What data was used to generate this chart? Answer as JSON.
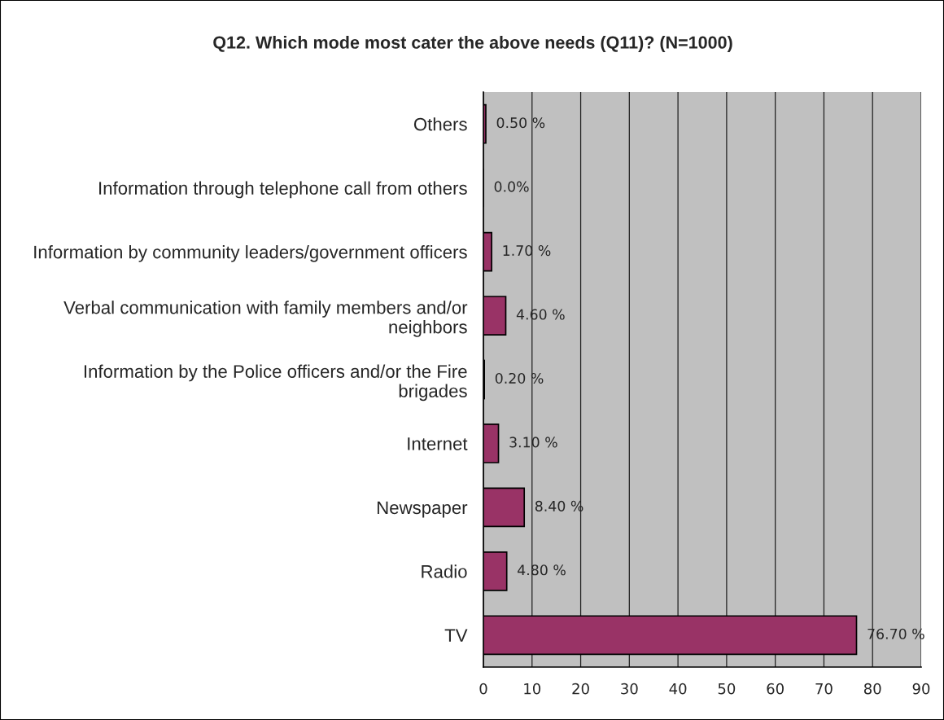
{
  "chart_data": {
    "type": "bar",
    "orientation": "horizontal",
    "title": "Q12. Which mode most cater the above needs (Q11)? (N=1000)",
    "categories": [
      "Others",
      "Information through telephone call from others",
      "Information by community leaders/government officers",
      "Verbal communication with family members and/or\nneighbors",
      "Information by the Police officers and/or the Fire\nbrigades",
      "Internet",
      "Newspaper",
      "Radio",
      "TV"
    ],
    "values": [
      0.5,
      0.0,
      1.7,
      4.6,
      0.2,
      3.1,
      8.4,
      4.8,
      76.7
    ],
    "value_labels": [
      "0.50 %",
      "0.0%",
      "1.70 %",
      "4.60 %",
      "0.20 %",
      "3.10 %",
      "8.40 %",
      "4.80 %",
      "76.70 %"
    ],
    "color": "#993366",
    "xlim": [
      0,
      90
    ],
    "xticks": [
      0,
      10,
      20,
      30,
      40,
      50,
      60,
      70,
      80,
      90
    ],
    "grid": "x"
  }
}
